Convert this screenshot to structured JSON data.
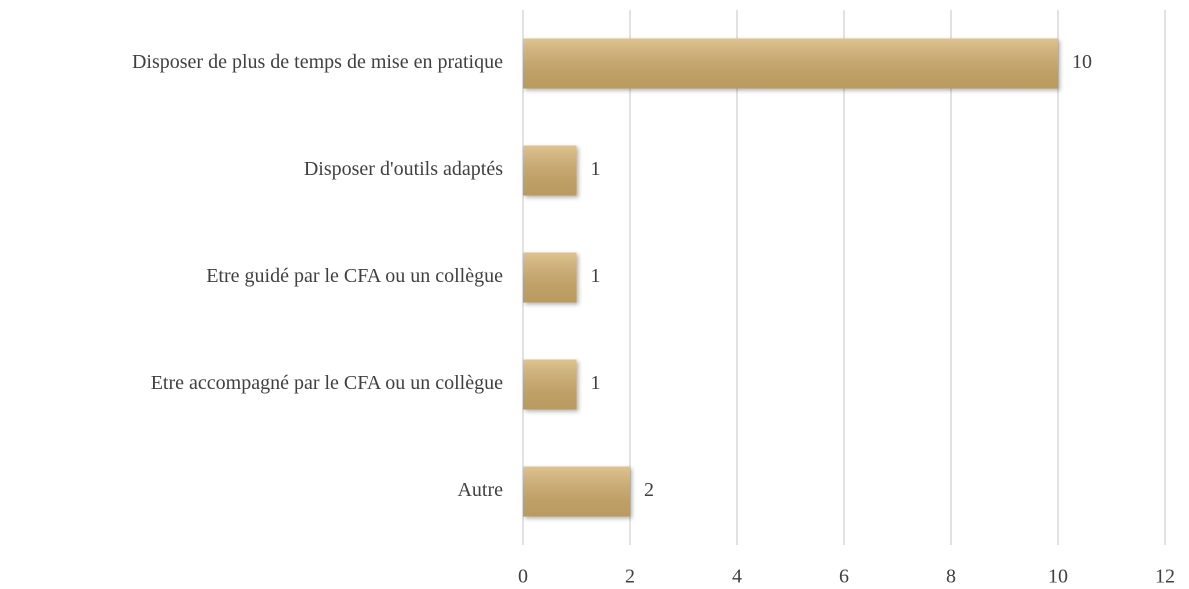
{
  "chart_data": {
    "type": "bar",
    "orientation": "horizontal",
    "categories": [
      "Disposer de plus de temps de mise en pratique",
      "Disposer d'outils adaptés",
      "Etre guidé par le CFA ou un collègue",
      "Etre accompagné par le CFA ou un collègue",
      "Autre"
    ],
    "values": [
      10,
      1,
      1,
      1,
      2
    ],
    "color": "#d4b06c",
    "xlim": [
      0,
      12
    ],
    "xticks": [
      0,
      2,
      4,
      6,
      8,
      10,
      12
    ],
    "grid": true
  }
}
